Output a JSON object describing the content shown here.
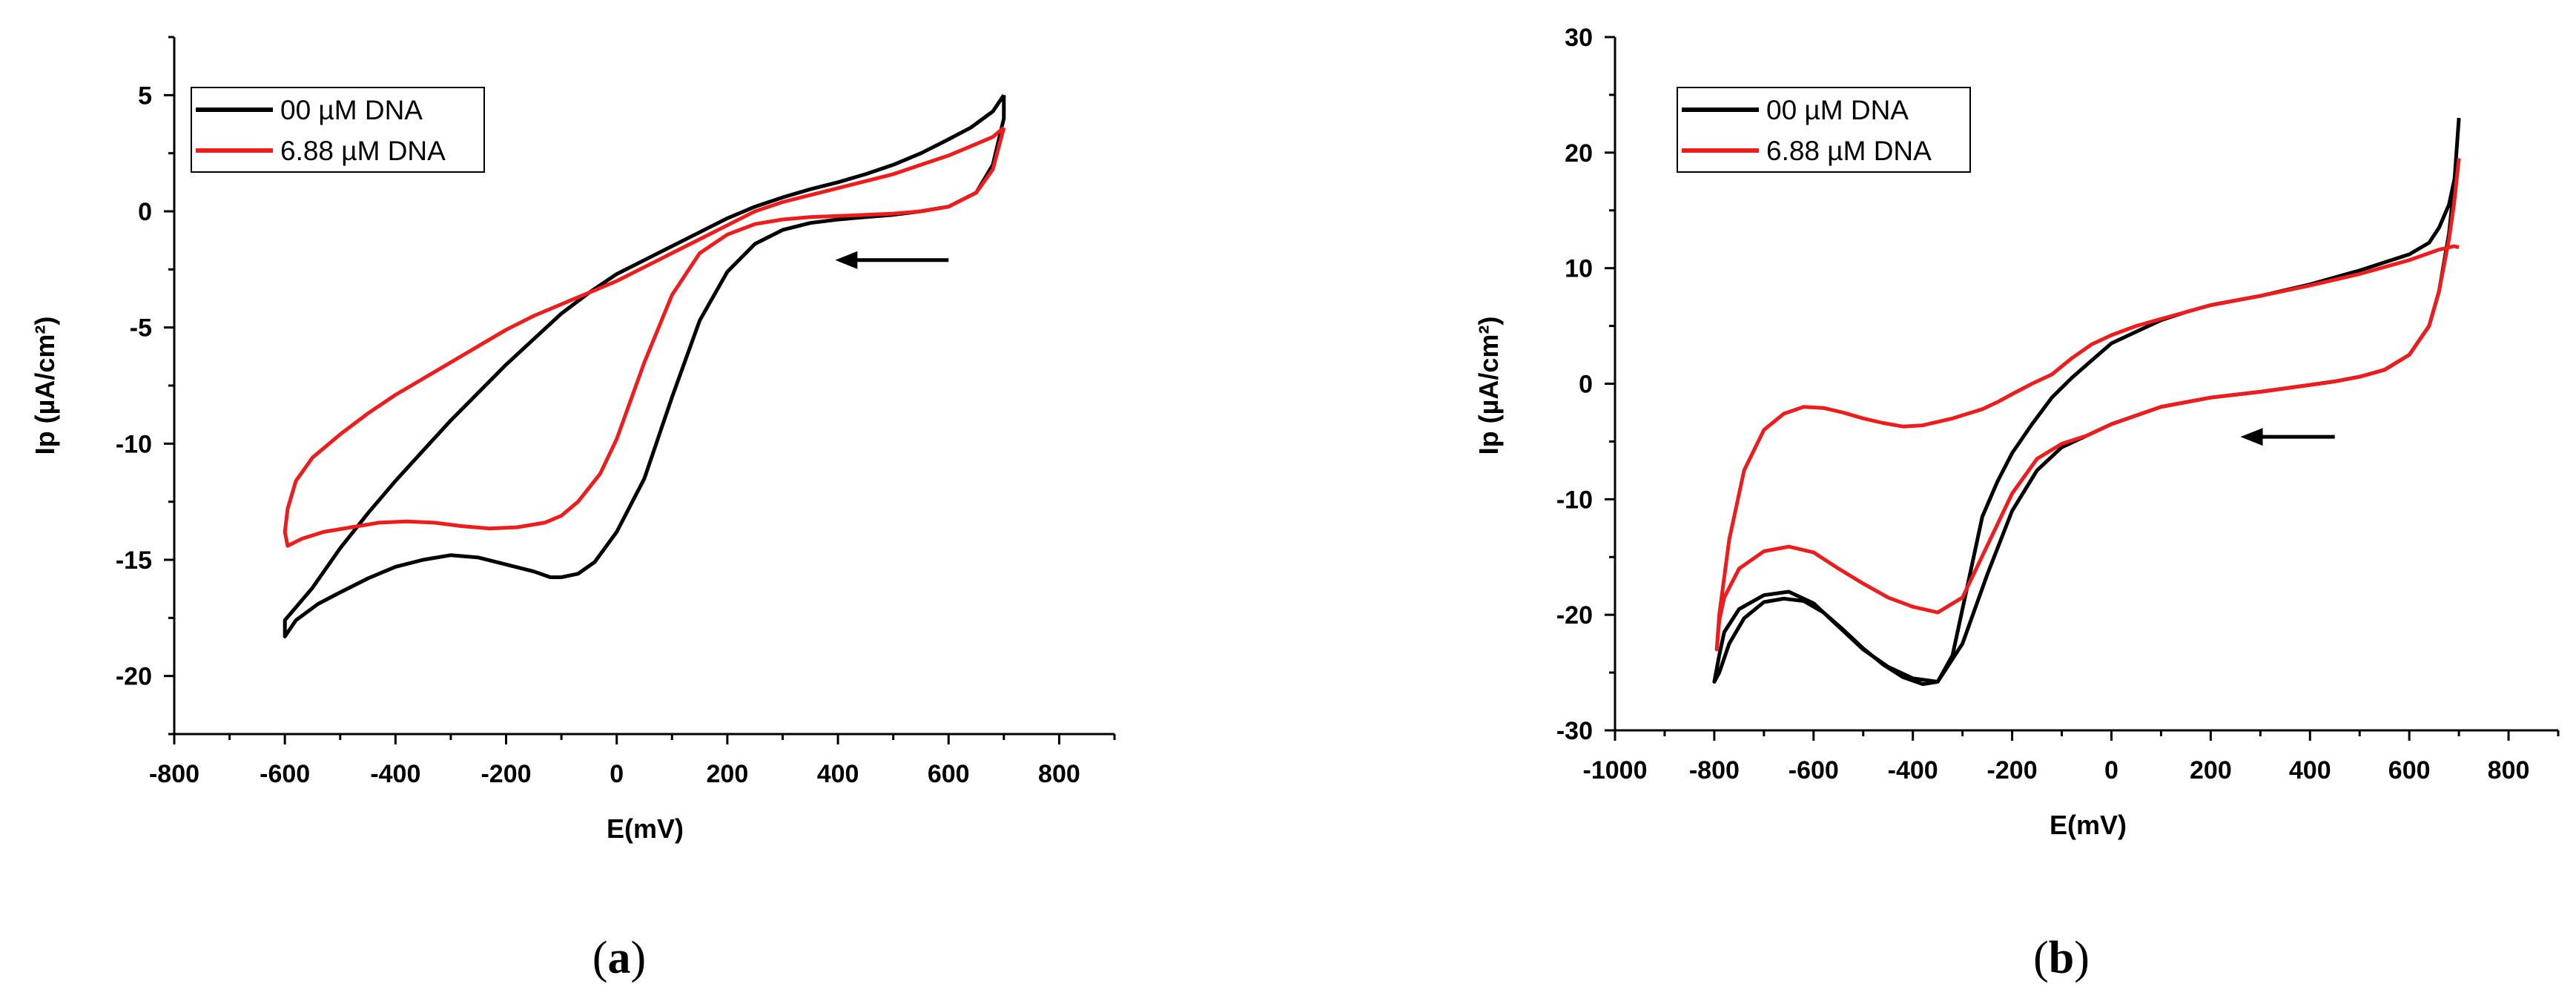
{
  "chart_data": [
    {
      "type": "line",
      "panel_label": "a",
      "xlabel": "E(mV)",
      "ylabel": "Ip (µA/cm²)",
      "xlim": [
        -800,
        900
      ],
      "ylim": [
        -22.5,
        7.5
      ],
      "xticks": [
        -800,
        -600,
        -400,
        -200,
        0,
        200,
        400,
        600,
        800
      ],
      "yticks": [
        -20,
        -15,
        -10,
        -5,
        0,
        5
      ],
      "legend_position": "top-left",
      "scan_arrow": {
        "from": [
          600,
          -2.1
        ],
        "to": [
          395,
          -2.1
        ]
      },
      "series": [
        {
          "name": "00 µM DNA",
          "color": "#000000",
          "x": [
            700,
            680,
            640,
            600,
            550,
            500,
            450,
            400,
            350,
            300,
            250,
            200,
            150,
            100,
            50,
            0,
            -50,
            -100,
            -150,
            -200,
            -250,
            -300,
            -350,
            -400,
            -450,
            -500,
            -550,
            -600,
            -600,
            -580,
            -540,
            -500,
            -450,
            -400,
            -350,
            -300,
            -250,
            -200,
            -150,
            -120,
            -100,
            -70,
            -40,
            0,
            50,
            100,
            150,
            200,
            250,
            300,
            350,
            400,
            450,
            500,
            550,
            600,
            650,
            680,
            700,
            700
          ],
          "y": [
            5.0,
            4.3,
            3.6,
            3.1,
            2.5,
            2.0,
            1.6,
            1.25,
            0.95,
            0.6,
            0.2,
            -0.3,
            -0.9,
            -1.5,
            -2.1,
            -2.7,
            -3.5,
            -4.4,
            -5.5,
            -6.6,
            -7.8,
            -9.0,
            -10.3,
            -11.6,
            -13.0,
            -14.5,
            -16.2,
            -17.6,
            -18.3,
            -17.6,
            -16.9,
            -16.4,
            -15.8,
            -15.3,
            -15.0,
            -14.8,
            -14.9,
            -15.2,
            -15.5,
            -15.75,
            -15.75,
            -15.6,
            -15.1,
            -13.8,
            -11.5,
            -8.0,
            -4.7,
            -2.6,
            -1.4,
            -0.8,
            -0.5,
            -0.35,
            -0.25,
            -0.15,
            0.0,
            0.2,
            0.8,
            2.0,
            4.0,
            5.0
          ]
        },
        {
          "name": "6.88 µM DNA",
          "color": "#ee1c1c",
          "x": [
            700,
            680,
            640,
            600,
            550,
            500,
            450,
            400,
            350,
            300,
            250,
            200,
            150,
            100,
            50,
            0,
            -50,
            -100,
            -150,
            -200,
            -250,
            -300,
            -350,
            -400,
            -450,
            -500,
            -550,
            -580,
            -595,
            -600,
            -595,
            -570,
            -530,
            -480,
            -430,
            -380,
            -330,
            -280,
            -230,
            -180,
            -130,
            -100,
            -70,
            -30,
            0,
            50,
            100,
            150,
            200,
            250,
            300,
            350,
            400,
            450,
            500,
            550,
            600,
            650,
            680,
            700
          ],
          "y": [
            3.6,
            3.2,
            2.8,
            2.4,
            2.0,
            1.6,
            1.3,
            1.0,
            0.7,
            0.4,
            0.0,
            -0.6,
            -1.2,
            -1.8,
            -2.4,
            -3.0,
            -3.5,
            -4.0,
            -4.5,
            -5.1,
            -5.8,
            -6.5,
            -7.2,
            -7.9,
            -8.7,
            -9.6,
            -10.6,
            -11.6,
            -12.8,
            -13.8,
            -14.4,
            -14.1,
            -13.8,
            -13.6,
            -13.4,
            -13.35,
            -13.4,
            -13.55,
            -13.65,
            -13.6,
            -13.4,
            -13.1,
            -12.5,
            -11.3,
            -9.8,
            -6.5,
            -3.6,
            -1.8,
            -1.0,
            -0.55,
            -0.35,
            -0.25,
            -0.2,
            -0.15,
            -0.1,
            0.0,
            0.2,
            0.8,
            1.8,
            3.6
          ]
        }
      ]
    },
    {
      "type": "line",
      "panel_label": "b",
      "xlabel": "E(mV)",
      "ylabel": "Ip (µA/cm²)",
      "xlim": [
        -1000,
        900
      ],
      "ylim": [
        -30,
        30
      ],
      "xticks": [
        -1000,
        -800,
        -600,
        -400,
        -200,
        0,
        200,
        400,
        600,
        800
      ],
      "yticks": [
        -30,
        -20,
        -10,
        0,
        10,
        20,
        30
      ],
      "legend_position": "top-left",
      "scan_arrow": {
        "from": [
          450,
          -4.6
        ],
        "to": [
          260,
          -4.6
        ]
      },
      "series": [
        {
          "name": "00 µM DNA",
          "color": "#000000",
          "x": [
            700,
            690,
            680,
            660,
            640,
            600,
            550,
            500,
            450,
            400,
            300,
            200,
            100,
            0,
            -50,
            -100,
            -150,
            -200,
            -250,
            -300,
            -350,
            -400,
            -450,
            -500,
            -550,
            -600,
            -650,
            -700,
            -750,
            -780,
            -790,
            -800,
            -790,
            -770,
            -740,
            -700,
            -660,
            -620,
            -580,
            -540,
            -500,
            -460,
            -420,
            -380,
            -350,
            -320,
            -290,
            -260,
            -230,
            -200,
            -160,
            -120,
            -80,
            -40,
            0,
            50,
            100,
            150,
            200,
            300,
            400,
            500,
            600,
            640,
            660,
            680,
            690,
            700
          ],
          "y": [
            23.0,
            17.0,
            13.0,
            8.0,
            5.0,
            2.5,
            1.2,
            0.6,
            0.2,
            -0.1,
            -0.7,
            -1.2,
            -2.0,
            -3.5,
            -4.5,
            -5.5,
            -7.5,
            -11.0,
            -16.5,
            -22.5,
            -25.8,
            -25.5,
            -24.5,
            -23.0,
            -21.0,
            -19.0,
            -18.0,
            -18.3,
            -19.5,
            -21.5,
            -23.5,
            -25.8,
            -25.0,
            -22.5,
            -20.3,
            -18.9,
            -18.6,
            -18.8,
            -19.8,
            -21.3,
            -22.9,
            -24.3,
            -25.4,
            -26.0,
            -25.8,
            -23.5,
            -17.5,
            -11.5,
            -8.5,
            -6.0,
            -3.5,
            -1.2,
            0.5,
            2.0,
            3.5,
            4.5,
            5.5,
            6.2,
            6.8,
            7.6,
            8.6,
            9.8,
            11.2,
            12.2,
            13.5,
            15.5,
            17.5,
            19.5
          ]
        },
        {
          "name": "6.88 µM DNA",
          "color": "#ee1c1c",
          "x": [
            700,
            690,
            680,
            660,
            640,
            600,
            550,
            500,
            450,
            400,
            300,
            200,
            100,
            0,
            -50,
            -100,
            -150,
            -200,
            -250,
            -300,
            -350,
            -400,
            -450,
            -500,
            -550,
            -600,
            -650,
            -700,
            -750,
            -780,
            -790,
            -795,
            -790,
            -770,
            -740,
            -700,
            -660,
            -620,
            -580,
            -540,
            -500,
            -460,
            -420,
            -380,
            -350,
            -320,
            -290,
            -260,
            -230,
            -200,
            -160,
            -120,
            -80,
            -40,
            0,
            50,
            100,
            150,
            200,
            300,
            400,
            500,
            600,
            640,
            660,
            680,
            690,
            700
          ],
          "y": [
            19.5,
            15.5,
            12.5,
            8.0,
            5.0,
            2.5,
            1.2,
            0.6,
            0.2,
            -0.1,
            -0.7,
            -1.2,
            -2.0,
            -3.5,
            -4.5,
            -5.2,
            -6.5,
            -9.5,
            -14.0,
            -18.5,
            -19.8,
            -19.3,
            -18.5,
            -17.3,
            -16.0,
            -14.6,
            -14.1,
            -14.5,
            -16.0,
            -18.5,
            -20.5,
            -23.0,
            -20.0,
            -13.5,
            -7.5,
            -4.0,
            -2.6,
            -2.0,
            -2.1,
            -2.5,
            -3.0,
            -3.4,
            -3.7,
            -3.6,
            -3.3,
            -3.0,
            -2.6,
            -2.2,
            -1.6,
            -0.9,
            0.0,
            0.8,
            2.2,
            3.4,
            4.2,
            5.0,
            5.6,
            6.2,
            6.8,
            7.6,
            8.5,
            9.5,
            10.7,
            11.3,
            11.6,
            11.8,
            11.9,
            11.8
          ]
        }
      ]
    }
  ]
}
